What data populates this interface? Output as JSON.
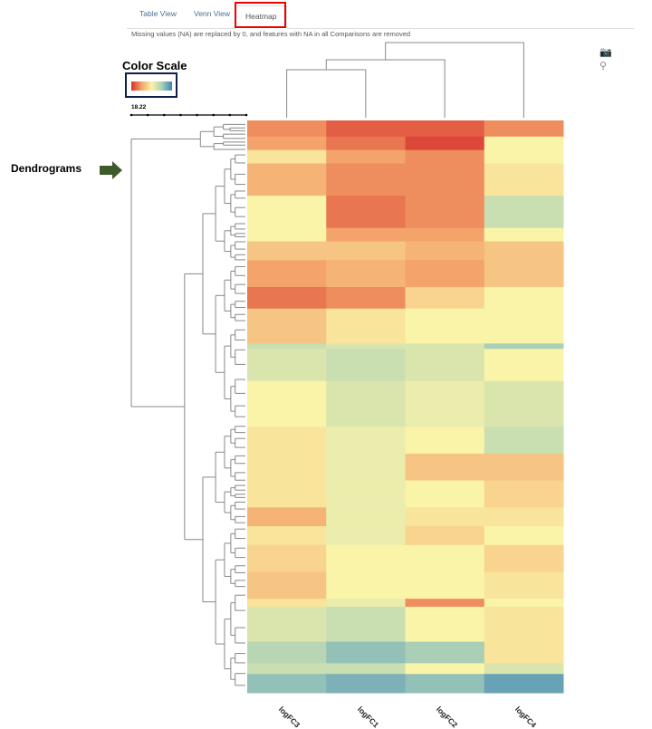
{
  "tabs": [
    {
      "label": "Table View",
      "active": false
    },
    {
      "label": "Venn View",
      "active": false
    },
    {
      "label": "Heatmap",
      "active": true
    }
  ],
  "note": "Missing values (NA) are replaced by 0, and features with NA in all Comparisons are removed",
  "annotations": {
    "color_scale_label": "Color Scale",
    "dendrograms_label": "Dendrograms",
    "highlight_color": "#e00000",
    "box_color": "#0d1f4a",
    "arrow_color": "#3e5a2a"
  },
  "toolbar_icons": [
    "camera-icon",
    "pin-icon"
  ],
  "color_scale": {
    "colors": [
      "#d7302a",
      "#f4a46a",
      "#faf4a8",
      "#a9cfb7",
      "#3c84b6"
    ]
  },
  "row_dendrogram_scale": "18.22",
  "chart_data": {
    "type": "heatmap",
    "columns": [
      "logFC3",
      "logFC1",
      "logFC2",
      "logFC4"
    ],
    "column_dendrogram": "((logFC3,logFC1),logFC2),logFC4",
    "value_range": [
      -1,
      1
    ],
    "row_bands": [
      {
        "rows": 6,
        "values": [
          0.6,
          0.8,
          0.8,
          0.6
        ]
      },
      {
        "rows": 5,
        "values": [
          0.5,
          0.7,
          0.9,
          0.0
        ]
      },
      {
        "rows": 5,
        "values": [
          0.1,
          0.5,
          0.6,
          0.0
        ]
      },
      {
        "rows": 12,
        "values": [
          0.4,
          0.6,
          0.6,
          0.1
        ]
      },
      {
        "rows": 12,
        "values": [
          0.0,
          0.7,
          0.6,
          -0.3
        ]
      },
      {
        "rows": 5,
        "values": [
          0.0,
          0.5,
          0.5,
          0.0
        ]
      },
      {
        "rows": 7,
        "values": [
          0.3,
          0.3,
          0.4,
          0.3
        ]
      },
      {
        "rows": 10,
        "values": [
          0.5,
          0.4,
          0.5,
          0.3
        ]
      },
      {
        "rows": 8,
        "values": [
          0.7,
          0.6,
          0.2,
          0.0
        ]
      },
      {
        "rows": 13,
        "values": [
          0.3,
          0.1,
          0.0,
          0.0
        ]
      },
      {
        "rows": 2,
        "values": [
          -0.3,
          -0.2,
          -0.2,
          -0.5
        ]
      },
      {
        "rows": 12,
        "values": [
          -0.2,
          -0.3,
          -0.2,
          0.0
        ]
      },
      {
        "rows": 17,
        "values": [
          0.0,
          -0.2,
          -0.1,
          -0.2
        ]
      },
      {
        "rows": 10,
        "values": [
          0.1,
          -0.1,
          0.0,
          -0.3
        ]
      },
      {
        "rows": 10,
        "values": [
          0.1,
          -0.1,
          0.3,
          0.3
        ]
      },
      {
        "rows": 10,
        "values": [
          0.1,
          -0.1,
          0.0,
          0.2
        ]
      },
      {
        "rows": 7,
        "values": [
          0.4,
          -0.1,
          0.1,
          0.1
        ]
      },
      {
        "rows": 7,
        "values": [
          0.1,
          -0.1,
          0.2,
          0.0
        ]
      },
      {
        "rows": 10,
        "values": [
          0.2,
          0.0,
          0.0,
          0.2
        ]
      },
      {
        "rows": 10,
        "values": [
          0.3,
          0.0,
          0.0,
          0.1
        ]
      },
      {
        "rows": 3,
        "values": [
          0.1,
          -0.1,
          0.6,
          0.0
        ]
      },
      {
        "rows": 13,
        "values": [
          -0.2,
          -0.3,
          0.0,
          0.1
        ]
      },
      {
        "rows": 8,
        "values": [
          -0.4,
          -0.6,
          -0.5,
          0.1
        ]
      },
      {
        "rows": 4,
        "values": [
          -0.3,
          -0.3,
          0.0,
          -0.2
        ]
      },
      {
        "rows": 7,
        "values": [
          -0.6,
          -0.7,
          -0.6,
          -0.8
        ]
      }
    ]
  }
}
